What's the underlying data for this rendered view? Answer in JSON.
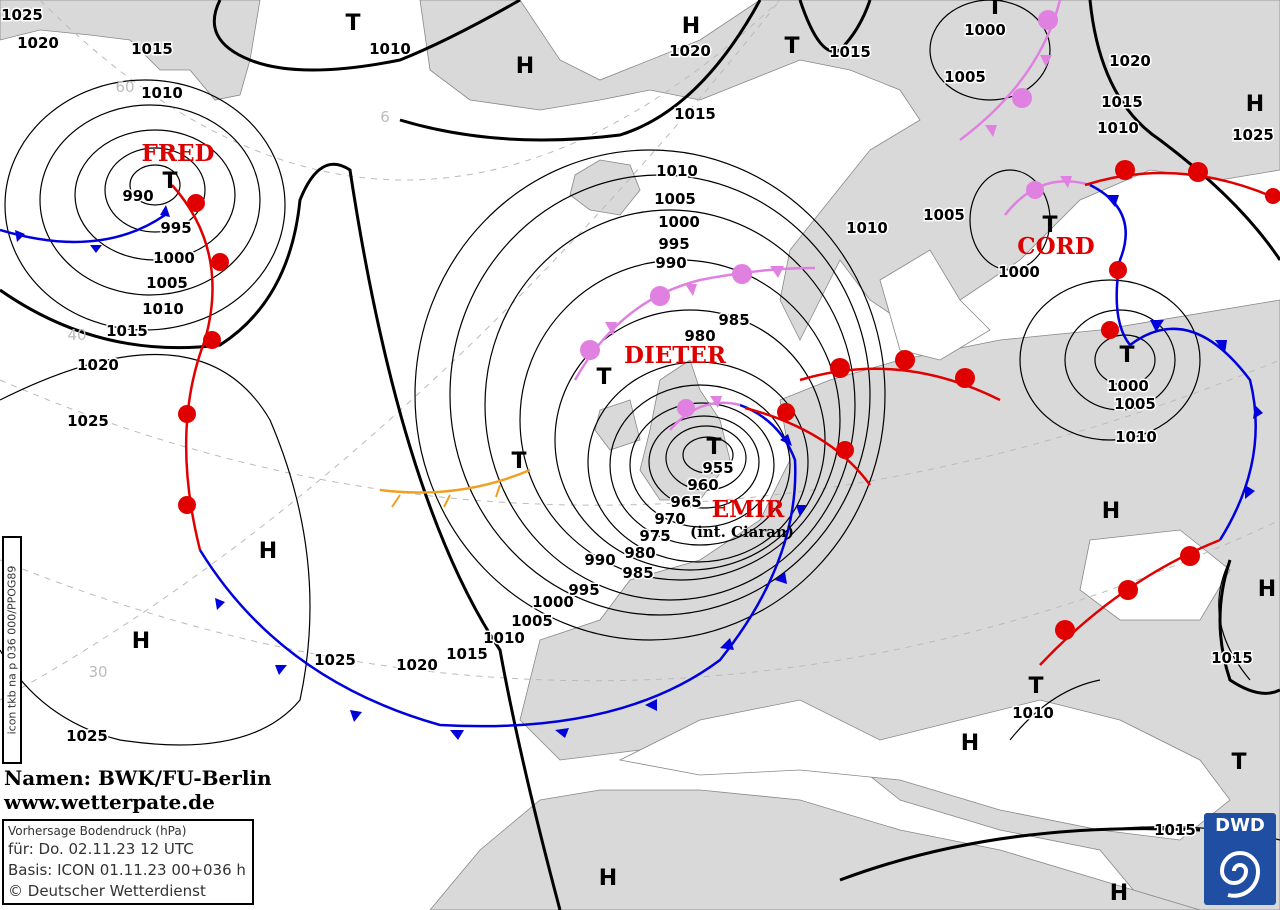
{
  "isobar_labels": [
    "1025",
    "1020",
    "1015",
    "1010",
    "1020",
    "1015",
    "1000",
    "1005",
    "1020",
    "1015",
    "1010",
    "1025",
    "1015",
    "1010",
    "1010",
    "1005",
    "1000",
    "995",
    "990",
    "1010",
    "1005",
    "1000",
    "985",
    "980",
    "990",
    "995",
    "1000",
    "1005",
    "1010",
    "1015",
    "1020",
    "1025",
    "1000",
    "1005",
    "1010",
    "955",
    "960",
    "965",
    "970",
    "975",
    "980",
    "985",
    "990",
    "995",
    "1000",
    "1005",
    "1010",
    "1015",
    "1020",
    "1025",
    "1025",
    "1015",
    "1010",
    "1015"
  ],
  "grid_labels": [
    "60",
    "6",
    "40",
    "30"
  ],
  "pressure_centers": [
    "T",
    "H",
    "H",
    "T",
    "T",
    "H",
    "T",
    "T",
    "T",
    "T",
    "T",
    "T",
    "H",
    "H",
    "H",
    "H",
    "T",
    "H",
    "T",
    "H",
    "H"
  ],
  "system_names": {
    "fred": "FRED",
    "dieter": "DIETER",
    "cord": "CORD",
    "emir": "EMIR",
    "emir_alias": "(int. Ciaran)"
  },
  "credits": {
    "names": "Namen: BWK/FU-Berlin",
    "website": "www.wetterpate.de"
  },
  "info_box": {
    "title": "Vorhersage Bodendruck (hPa)",
    "valid": "für:  Do. 02.11.23  12 UTC",
    "basis": "Basis: ICON  01.11.23 00+036 h",
    "copyright": "© Deutscher Wetterdienst"
  },
  "product_code": "icon tkb na p 036 000/PPOG89",
  "logo": "DWD",
  "colors": {
    "land": "#d9d9d9",
    "sea": "#ffffff",
    "warm_front": "#e00000",
    "cold_front": "#0000dd",
    "occlusion": "#e080e0",
    "trough": "#f0a020",
    "names": "#d00000"
  }
}
